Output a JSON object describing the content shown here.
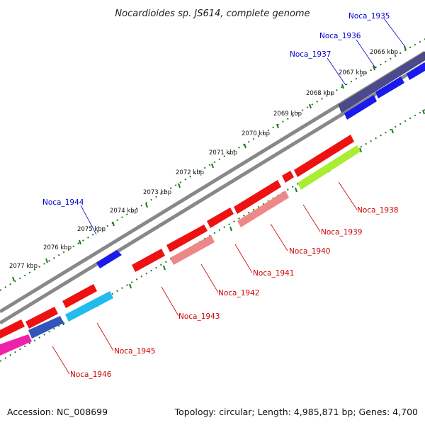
{
  "title": "Nocardioides sp. JS614, complete genome",
  "footer": {
    "accession": "Accession: NC_008699",
    "summary": "Topology: circular; Length: 4,985,871 bp; Genes: 4,700"
  },
  "colors": {
    "backbone": "#888888",
    "tick_dots": "#1e7b1e",
    "label_forward": "#0000cc",
    "label_reverse": "#cc0000"
  },
  "scale_labels": [
    "2066 kbp",
    "2067 kbp",
    "2068 kbp",
    "2069 kbp",
    "2070 kbp",
    "2071 kbp",
    "2072 kbp",
    "2073 kbp",
    "2074 kbp",
    "2075 kbp",
    "2076 kbp",
    "2077 kbp"
  ],
  "genes_outer": [
    {
      "label": "Noca_1935",
      "color": "#4a4a8c"
    },
    {
      "label": "Noca_1936",
      "color": "#1a1aee"
    },
    {
      "label": "Noca_1937",
      "color": "#1a1aee"
    },
    {
      "label": "Noca_1944",
      "color": "#1a1aee"
    }
  ],
  "genes_inner": [
    {
      "label": "Noca_1938",
      "color": "#aaee33"
    },
    {
      "label": "Noca_1939",
      "color": "#ee1111"
    },
    {
      "label": "Noca_1940",
      "color": "#ee8888"
    },
    {
      "label": "Noca_1941",
      "color": "#ee1111"
    },
    {
      "label": "Noca_1942",
      "color": "#ee8888"
    },
    {
      "label": "Noca_1943",
      "color": "#ee1111"
    },
    {
      "label": "Noca_1945",
      "color": "#22bbee"
    },
    {
      "label": "Noca_1946",
      "color": "#ee22aa"
    }
  ]
}
